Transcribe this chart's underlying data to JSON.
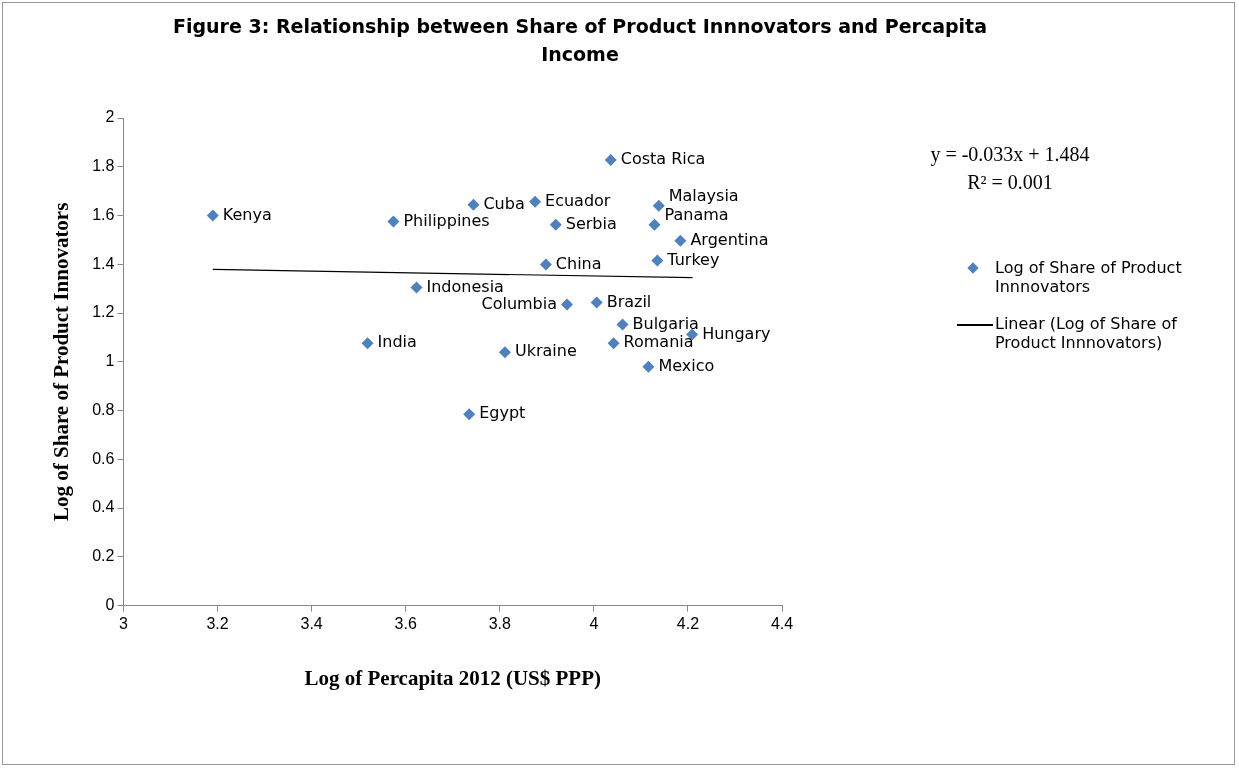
{
  "chart_data": {
    "type": "scatter",
    "title": "Figure 3: Relationship between  Share of Product Innnovators and Percapita Income",
    "xlabel": "Log of Percapita 2012 (US$ PPP)",
    "ylabel": "Log of Share of Product Innovators",
    "xlim": [
      3,
      4.4
    ],
    "xticks": [
      3,
      3.2,
      3.4,
      3.6,
      3.8,
      4,
      4.2,
      4.4
    ],
    "ylim": [
      0,
      2
    ],
    "yticks": [
      0,
      0.2,
      0.4,
      0.6,
      0.8,
      1,
      1.2,
      1.4,
      1.6,
      1.8,
      2
    ],
    "grid": false,
    "legend": "right",
    "marker": "diamond",
    "series": [
      {
        "name": "Log of Share of Product Innnovators",
        "color": "#4f81bd",
        "x": [
          3.19,
          3.574,
          3.623,
          3.519,
          3.744,
          3.875,
          3.735,
          3.811,
          4.042,
          4.116,
          4.209,
          4.061,
          3.943,
          4.006,
          3.898,
          4.135,
          4.184,
          3.919,
          4.129,
          4.138,
          4.036
        ],
        "values": [
          1.6,
          1.575,
          1.305,
          1.076,
          1.644,
          1.656,
          0.785,
          1.039,
          1.076,
          0.98,
          1.112,
          1.153,
          1.235,
          1.243,
          1.399,
          1.415,
          1.497,
          1.562,
          1.562,
          1.64,
          1.828
        ]
      },
      {
        "name": "Linear (Log of Share of Product Innnovators)",
        "type": "line",
        "color": "#000000",
        "marker": "none",
        "x": [
          3.19,
          4.21
        ],
        "values": [
          1.379,
          1.345
        ]
      }
    ],
    "annotations": [
      {
        "text": "Kenya",
        "x": 3.19,
        "y": 1.6
      },
      {
        "text": "Philippines",
        "x": 3.574,
        "y": 1.575
      },
      {
        "text": "Indonesia",
        "x": 3.623,
        "y": 1.305
      },
      {
        "text": "India",
        "x": 3.519,
        "y": 1.076
      },
      {
        "text": "Cuba",
        "x": 3.744,
        "y": 1.644
      },
      {
        "text": "Ecuador",
        "x": 3.875,
        "y": 1.656
      },
      {
        "text": "Egypt",
        "x": 3.735,
        "y": 0.785
      },
      {
        "text": "Ukraine",
        "x": 3.811,
        "y": 1.039
      },
      {
        "text": "Romania",
        "x": 4.042,
        "y": 1.076
      },
      {
        "text": "Mexico",
        "x": 4.116,
        "y": 0.98
      },
      {
        "text": "Hungary",
        "x": 4.209,
        "y": 1.112
      },
      {
        "text": "Bulgaria",
        "x": 4.061,
        "y": 1.153
      },
      {
        "text": "Columbia",
        "x": 3.943,
        "y": 1.235
      },
      {
        "text": "Brazil",
        "x": 4.006,
        "y": 1.243
      },
      {
        "text": "China",
        "x": 3.898,
        "y": 1.399
      },
      {
        "text": "Turkey",
        "x": 4.135,
        "y": 1.415
      },
      {
        "text": "Argentina",
        "x": 4.184,
        "y": 1.497
      },
      {
        "text": "Serbia",
        "x": 3.919,
        "y": 1.562
      },
      {
        "text": "Panama",
        "x": 4.129,
        "y": 1.562
      },
      {
        "text": "Malaysia",
        "x": 4.138,
        "y": 1.64
      },
      {
        "text": "Costa Rica",
        "x": 4.036,
        "y": 1.828
      },
      "y = -0.033x + 1.484",
      "R² = 0.001"
    ]
  }
}
